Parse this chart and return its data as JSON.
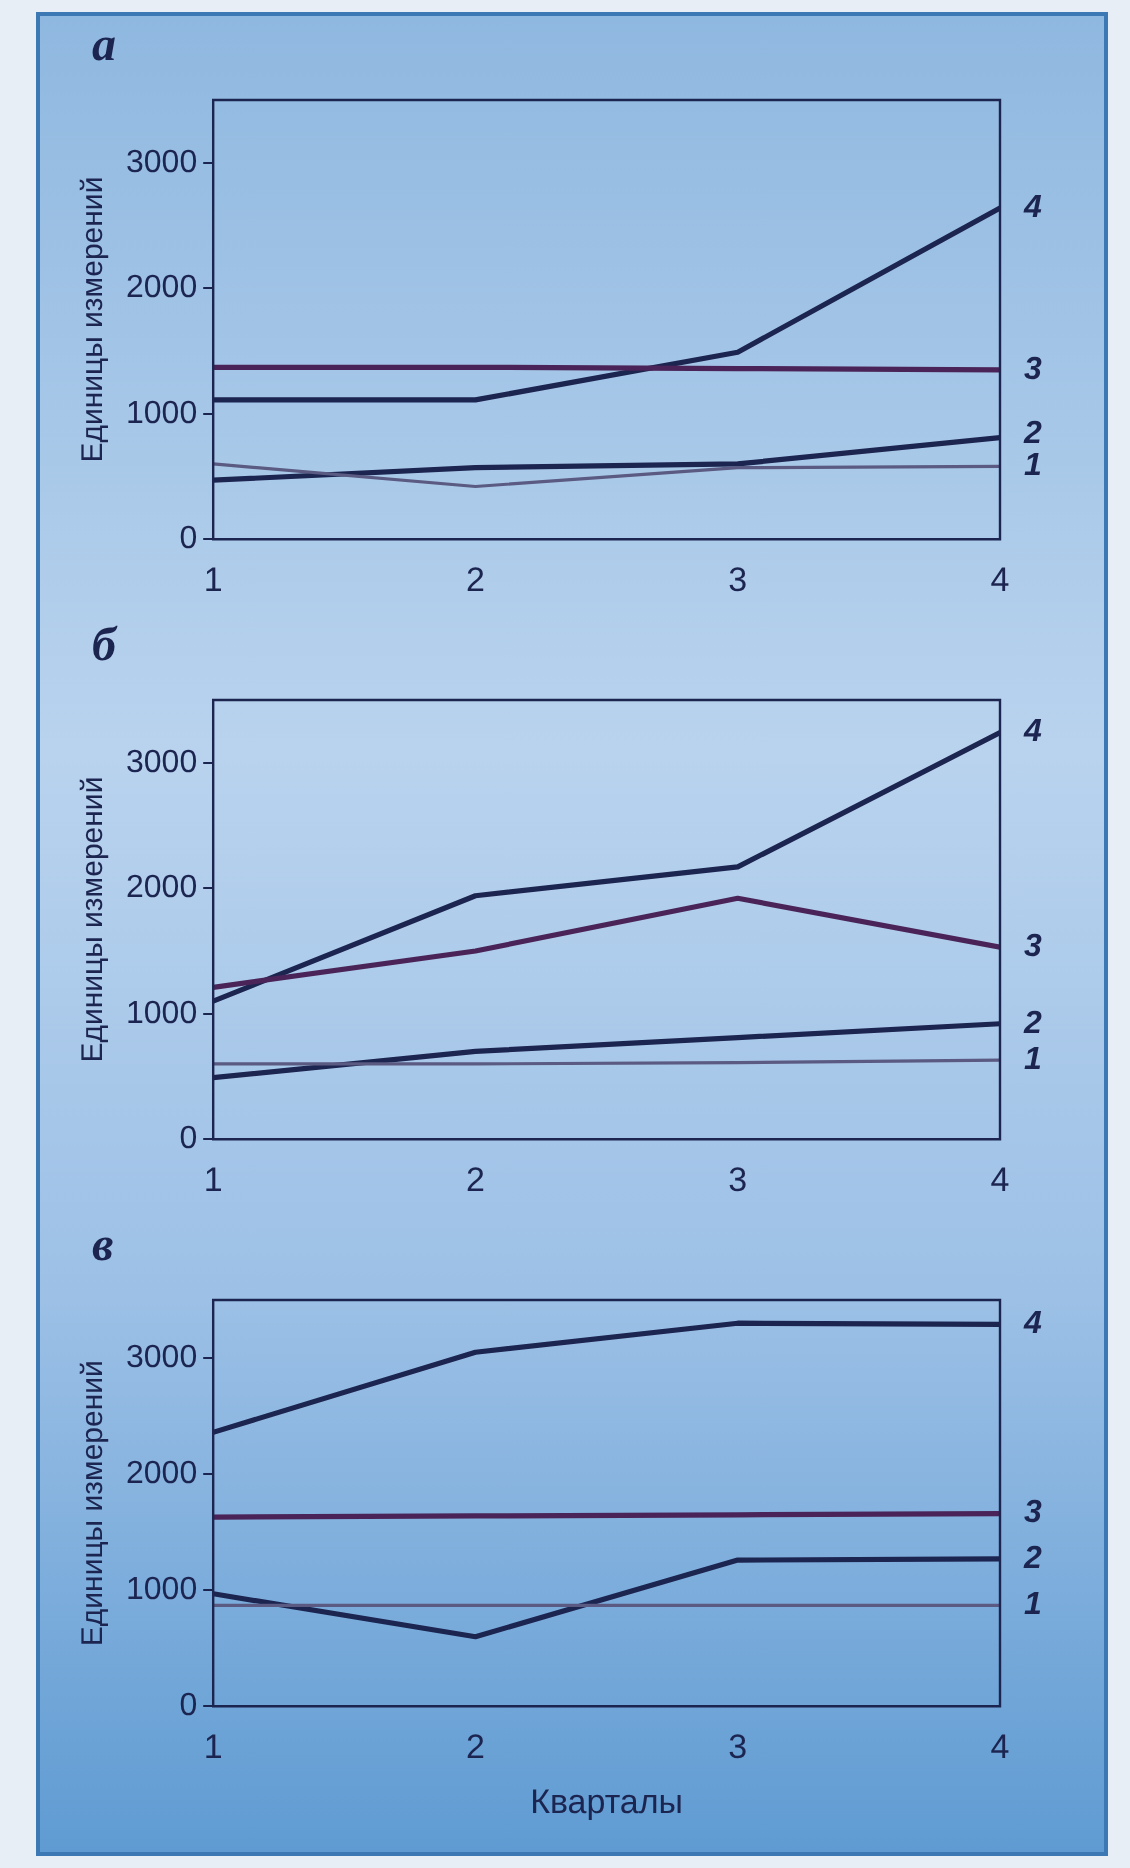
{
  "chart_data": [
    {
      "type": "line",
      "title": "а",
      "ylabel": "Единицы измерений",
      "x": [
        1,
        2,
        3,
        4
      ],
      "xlim": [
        1,
        4
      ],
      "xticks": [
        1,
        2,
        3,
        4
      ],
      "ylim": [
        0,
        3500
      ],
      "yticks": [
        0,
        1000,
        2000,
        3000
      ],
      "grid": false,
      "legend": false,
      "marker": "none",
      "series": [
        {
          "name": "1",
          "color": "#5a5a82",
          "values": [
            600,
            420,
            570,
            580
          ]
        },
        {
          "name": "2",
          "color": "#1c2450",
          "values": [
            470,
            570,
            600,
            810
          ]
        },
        {
          "name": "3",
          "color": "#4a2458",
          "values": [
            1370,
            1370,
            1360,
            1350
          ]
        },
        {
          "name": "4",
          "color": "#1c2450",
          "values": [
            1110,
            1110,
            1490,
            2640
          ]
        }
      ]
    },
    {
      "type": "line",
      "title": "б",
      "ylabel": "Единицы измерений",
      "x": [
        1,
        2,
        3,
        4
      ],
      "xlim": [
        1,
        4
      ],
      "xticks": [
        1,
        2,
        3,
        4
      ],
      "ylim": [
        0,
        3500
      ],
      "yticks": [
        0,
        1000,
        2000,
        3000
      ],
      "grid": false,
      "legend": false,
      "marker": "none",
      "series": [
        {
          "name": "1",
          "color": "#5a5a82",
          "values": [
            600,
            600,
            610,
            630
          ]
        },
        {
          "name": "2",
          "color": "#1c2450",
          "values": [
            490,
            700,
            810,
            920
          ]
        },
        {
          "name": "3",
          "color": "#4a2458",
          "values": [
            1210,
            1500,
            1920,
            1530
          ]
        },
        {
          "name": "4",
          "color": "#1c2450",
          "values": [
            1100,
            1940,
            2170,
            3240
          ]
        }
      ]
    },
    {
      "type": "line",
      "title": "в",
      "ylabel": "Единицы измерений",
      "xlabel": "Кварталы",
      "x": [
        1,
        2,
        3,
        4
      ],
      "xlim": [
        1,
        4
      ],
      "xticks": [
        1,
        2,
        3,
        4
      ],
      "ylim": [
        0,
        3500
      ],
      "yticks": [
        0,
        1000,
        2000,
        3000
      ],
      "grid": false,
      "legend": false,
      "marker": "none",
      "series": [
        {
          "name": "1",
          "color": "#5a5a82",
          "values": [
            870,
            870,
            870,
            870
          ]
        },
        {
          "name": "2",
          "color": "#1c2450",
          "values": [
            970,
            600,
            1260,
            1270
          ]
        },
        {
          "name": "3",
          "color": "#4a2458",
          "values": [
            1630,
            1640,
            1650,
            1660
          ]
        },
        {
          "name": "4",
          "color": "#1c2450",
          "values": [
            2360,
            3050,
            3300,
            3290
          ]
        }
      ]
    }
  ]
}
